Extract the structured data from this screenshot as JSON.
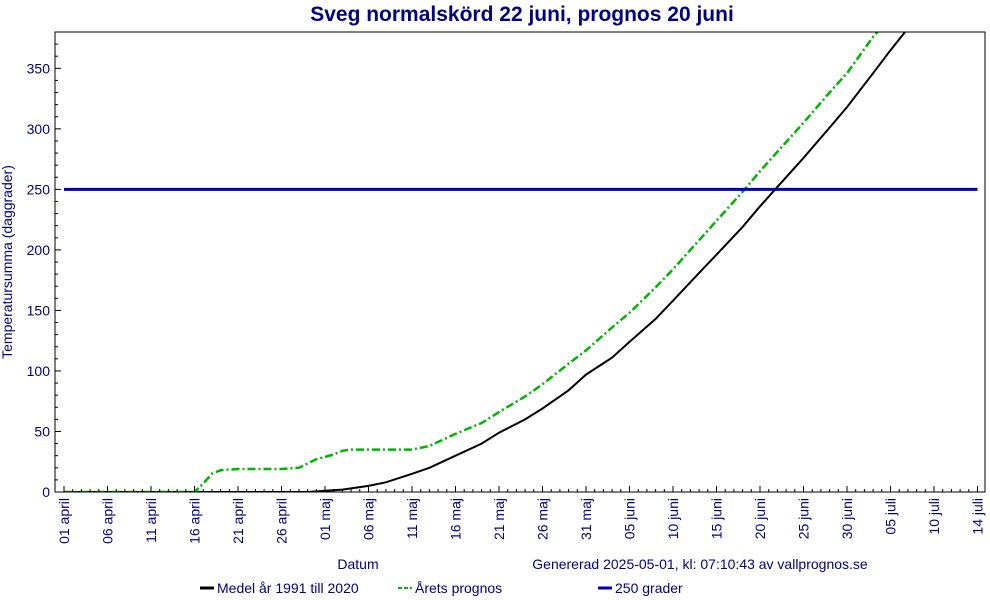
{
  "chart_data": {
    "type": "line",
    "title": "Sveg normalskörd 22 juni, prognos 20 juni",
    "xlabel": "Datum",
    "ylabel": "Temperatursumma (daggrader)",
    "ylim": [
      0,
      380
    ],
    "y_ticks": [
      0,
      50,
      100,
      150,
      200,
      250,
      300,
      350
    ],
    "x_range_days": [
      0,
      105
    ],
    "x_ticks": [
      {
        "day": 0,
        "label": "01 april"
      },
      {
        "day": 5,
        "label": "06 april"
      },
      {
        "day": 10,
        "label": "11 april"
      },
      {
        "day": 15,
        "label": "16 april"
      },
      {
        "day": 20,
        "label": "21 april"
      },
      {
        "day": 25,
        "label": "26 april"
      },
      {
        "day": 30,
        "label": "01 maj"
      },
      {
        "day": 35,
        "label": "06 maj"
      },
      {
        "day": 40,
        "label": "11 maj"
      },
      {
        "day": 45,
        "label": "16 maj"
      },
      {
        "day": 50,
        "label": "21 maj"
      },
      {
        "day": 55,
        "label": "26 maj"
      },
      {
        "day": 60,
        "label": "31 maj"
      },
      {
        "day": 65,
        "label": "05 juni"
      },
      {
        "day": 70,
        "label": "10 juni"
      },
      {
        "day": 75,
        "label": "15 juni"
      },
      {
        "day": 80,
        "label": "20 juni"
      },
      {
        "day": 85,
        "label": "25 juni"
      },
      {
        "day": 90,
        "label": "30 juni"
      },
      {
        "day": 95,
        "label": "05 juli"
      },
      {
        "day": 100,
        "label": "10 juli"
      },
      {
        "day": 105,
        "label": "14 juli"
      }
    ],
    "series": [
      {
        "name": "Medel år 1991 till 2020",
        "color": "#000000",
        "style": "solid",
        "points": [
          [
            0,
            0
          ],
          [
            15,
            0
          ],
          [
            20,
            0
          ],
          [
            25,
            0
          ],
          [
            28,
            0
          ],
          [
            30,
            1
          ],
          [
            32,
            2
          ],
          [
            35,
            5
          ],
          [
            37,
            8
          ],
          [
            40,
            15
          ],
          [
            42,
            20
          ],
          [
            45,
            30
          ],
          [
            48,
            40
          ],
          [
            50,
            49
          ],
          [
            53,
            60
          ],
          [
            55,
            69
          ],
          [
            58,
            84
          ],
          [
            60,
            97
          ],
          [
            63,
            111
          ],
          [
            65,
            124
          ],
          [
            68,
            143
          ],
          [
            70,
            158
          ],
          [
            73,
            181
          ],
          [
            75,
            196
          ],
          [
            78,
            219
          ],
          [
            80,
            236
          ],
          [
            82,
            252
          ],
          [
            85,
            276
          ],
          [
            88,
            301
          ],
          [
            90,
            318
          ],
          [
            93,
            346
          ],
          [
            95,
            365
          ],
          [
            97,
            383
          ]
        ]
      },
      {
        "name": "Årets prognos",
        "color": "#00b400",
        "style": "dashed",
        "points": [
          [
            0,
            0
          ],
          [
            15,
            0
          ],
          [
            16,
            7
          ],
          [
            17,
            15
          ],
          [
            18,
            18
          ],
          [
            20,
            19
          ],
          [
            25,
            19
          ],
          [
            27,
            20
          ],
          [
            29,
            27
          ],
          [
            31,
            31
          ],
          [
            32,
            34
          ],
          [
            33,
            35
          ],
          [
            35,
            35
          ],
          [
            40,
            35
          ],
          [
            42,
            38
          ],
          [
            45,
            48
          ],
          [
            48,
            57
          ],
          [
            50,
            66
          ],
          [
            53,
            79
          ],
          [
            55,
            89
          ],
          [
            58,
            106
          ],
          [
            60,
            117
          ],
          [
            63,
            136
          ],
          [
            65,
            148
          ],
          [
            68,
            169
          ],
          [
            70,
            184
          ],
          [
            73,
            208
          ],
          [
            75,
            224
          ],
          [
            78,
            248
          ],
          [
            80,
            265
          ],
          [
            82,
            281
          ],
          [
            85,
            305
          ],
          [
            88,
            330
          ],
          [
            90,
            346
          ],
          [
            93,
            376
          ],
          [
            95,
            392
          ]
        ]
      },
      {
        "name": "250 grader",
        "color": "#0000b4",
        "style": "solid",
        "points": [
          [
            0,
            250
          ],
          [
            105,
            250
          ]
        ]
      }
    ],
    "legend_position": "bottom",
    "footer_note": "Genererad 2025-05-01, kl: 07:10:43 av vallprognos.se"
  }
}
